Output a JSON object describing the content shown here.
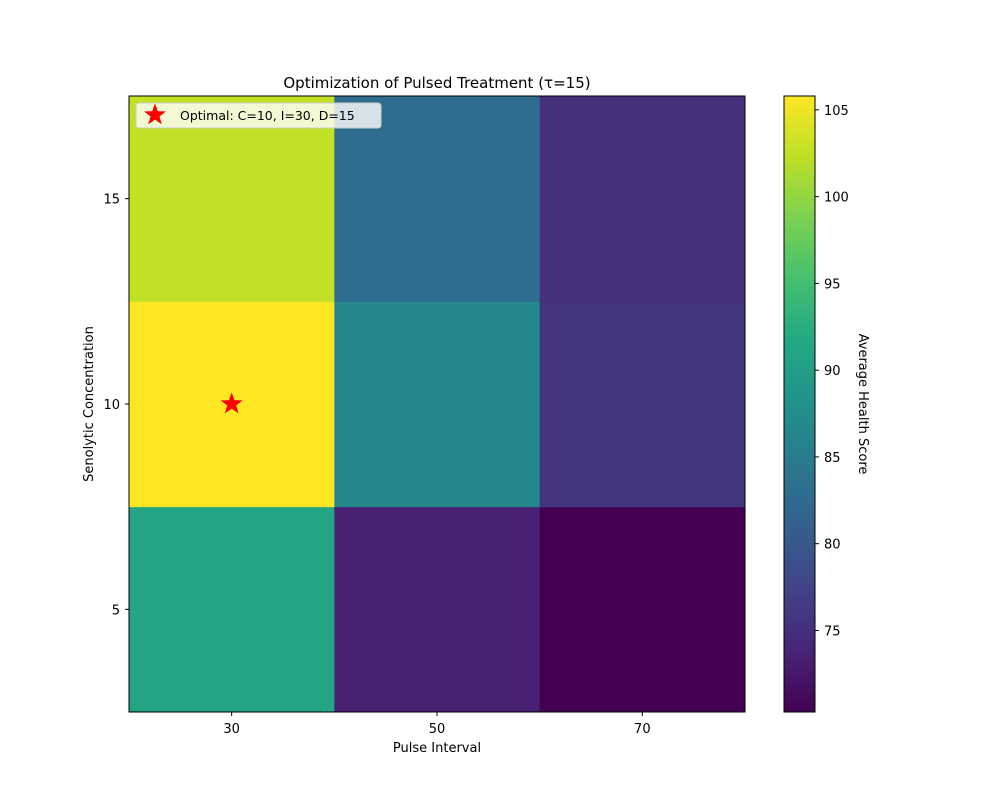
{
  "chart_data": {
    "type": "heatmap",
    "title": "Optimization of Pulsed Treatment (τ=15)",
    "xlabel": "Pulse Interval",
    "ylabel": "Senolytic Concentration",
    "x": [
      30,
      50,
      70
    ],
    "y": [
      5,
      10,
      15
    ],
    "values": [
      [
        91.0,
        73.5,
        70.3
      ],
      [
        105.8,
        86.5,
        75.6
      ],
      [
        102.5,
        83.0,
        75.3
      ]
    ],
    "colorbar": {
      "label": "Average Health Score",
      "range": [
        70.3,
        105.8
      ],
      "ticks": [
        "75",
        "80",
        "85",
        "90",
        "95",
        "100",
        "105"
      ],
      "colormap": "viridis"
    },
    "marker": {
      "x": 30,
      "y": 10,
      "symbol": "star",
      "color": "#ff0000",
      "label": "Optimal: C=10, I=30, D=15"
    },
    "legend_position": "upper-left",
    "grid": false
  }
}
